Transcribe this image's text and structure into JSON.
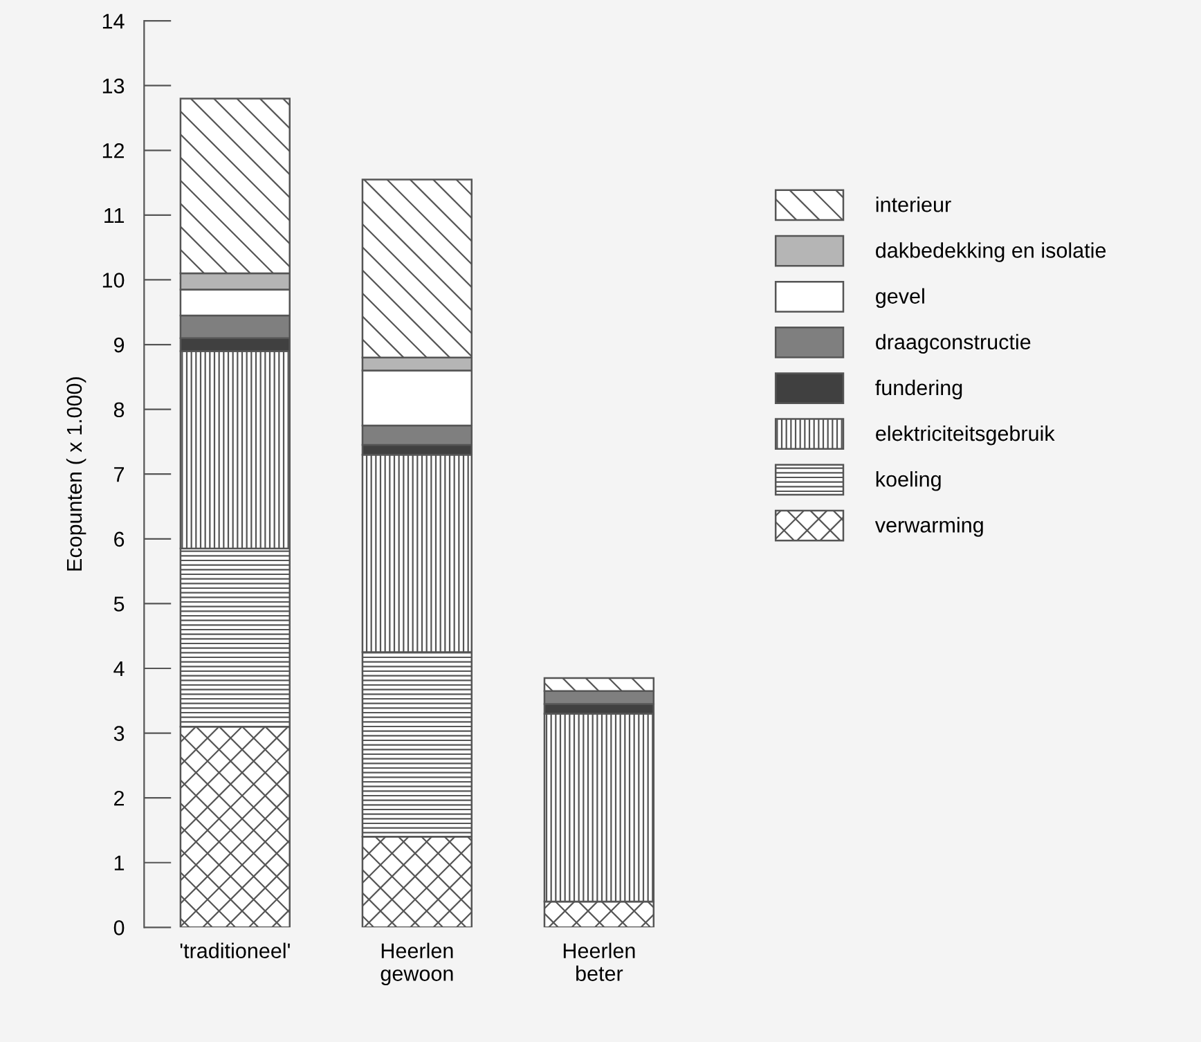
{
  "chart_data": {
    "type": "bar",
    "stacked": true,
    "ylabel": "Ecopunten ( x 1.000)",
    "categories": [
      "'traditioneel'",
      "Heerlen\ngewoon",
      "Heerlen\nbeter"
    ],
    "ylim": [
      0,
      14
    ],
    "yticks": [
      0,
      1,
      2,
      3,
      4,
      5,
      6,
      7,
      8,
      9,
      10,
      11,
      12,
      13,
      14
    ],
    "grid": false,
    "legend": "right",
    "series": [
      {
        "name": "verwarming",
        "color": "#555555",
        "values": [
          3.1,
          1.4,
          0.4
        ]
      },
      {
        "name": "koeling",
        "color": "#555555",
        "values": [
          2.75,
          2.85,
          0
        ]
      },
      {
        "name": "elektriciteitsgebruik",
        "color": "#555555",
        "values": [
          3.05,
          3.05,
          2.9
        ]
      },
      {
        "name": "fundering",
        "color": "#404040",
        "values": [
          0.2,
          0.15,
          0.15
        ]
      },
      {
        "name": "draagconstructie",
        "color": "#7f7f7f",
        "values": [
          0.35,
          0.3,
          0.2
        ]
      },
      {
        "name": "gevel",
        "color": "#ffffff",
        "values": [
          0.4,
          0.85,
          0
        ]
      },
      {
        "name": "dakbedekking en isolatie",
        "color": "#b5b5b5",
        "values": [
          0.25,
          0.2,
          0
        ]
      },
      {
        "name": "interieur",
        "color": "#555555",
        "values": [
          2.7,
          2.75,
          0.2
        ]
      }
    ]
  }
}
